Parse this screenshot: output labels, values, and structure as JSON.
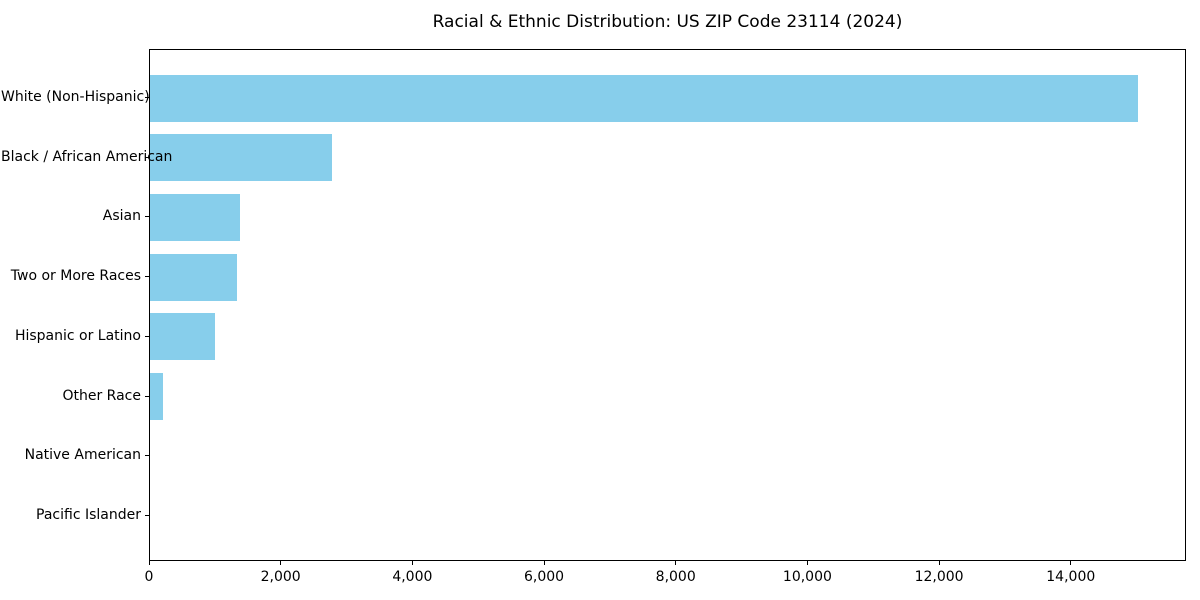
{
  "title": "Racial & Ethnic Distribution: US ZIP Code 23114 (2024)",
  "colors": {
    "bar": "#87CEEB",
    "axis": "#000000",
    "text": "#000000",
    "background": "#ffffff"
  },
  "chart_data": {
    "type": "bar",
    "orientation": "horizontal",
    "title": "Racial & Ethnic Distribution: US ZIP Code 23114 (2024)",
    "xlabel": "",
    "ylabel": "",
    "categories": [
      "White (Non-Hispanic)",
      "Black / African American",
      "Asian",
      "Two or More Races",
      "Hispanic or Latino",
      "Other Race",
      "Native American",
      "Pacific Islander"
    ],
    "values": [
      15000,
      2760,
      1370,
      1320,
      990,
      190,
      0,
      0
    ],
    "xlim": [
      0,
      15750
    ],
    "x_ticks": [
      0,
      2000,
      4000,
      6000,
      8000,
      10000,
      12000,
      14000
    ],
    "x_tick_labels": [
      "0",
      "2,000",
      "4,000",
      "6,000",
      "8,000",
      "10,000",
      "12,000",
      "14,000"
    ],
    "bar_color": "#87CEEB",
    "grid": false,
    "legend": "none",
    "data_labels": "none"
  }
}
